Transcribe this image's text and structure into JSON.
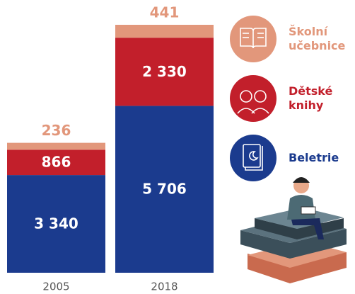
{
  "chart_data": {
    "type": "stacked_bar",
    "categories": [
      "2005",
      "2018"
    ],
    "series": [
      {
        "name": "Beletrie",
        "color": "#1b3b8e",
        "values": [
          3340,
          5706
        ],
        "value_labels": [
          "3 340",
          "5 706"
        ]
      },
      {
        "name": "Dětské knihy",
        "color": "#c21f2b",
        "values": [
          866,
          2330
        ],
        "value_labels": [
          "866",
          "2 330"
        ]
      },
      {
        "name": "Školní učebnice",
        "color": "#e2977b",
        "values": [
          236,
          441
        ],
        "value_labels": [
          "236",
          "441"
        ]
      }
    ]
  }
}
